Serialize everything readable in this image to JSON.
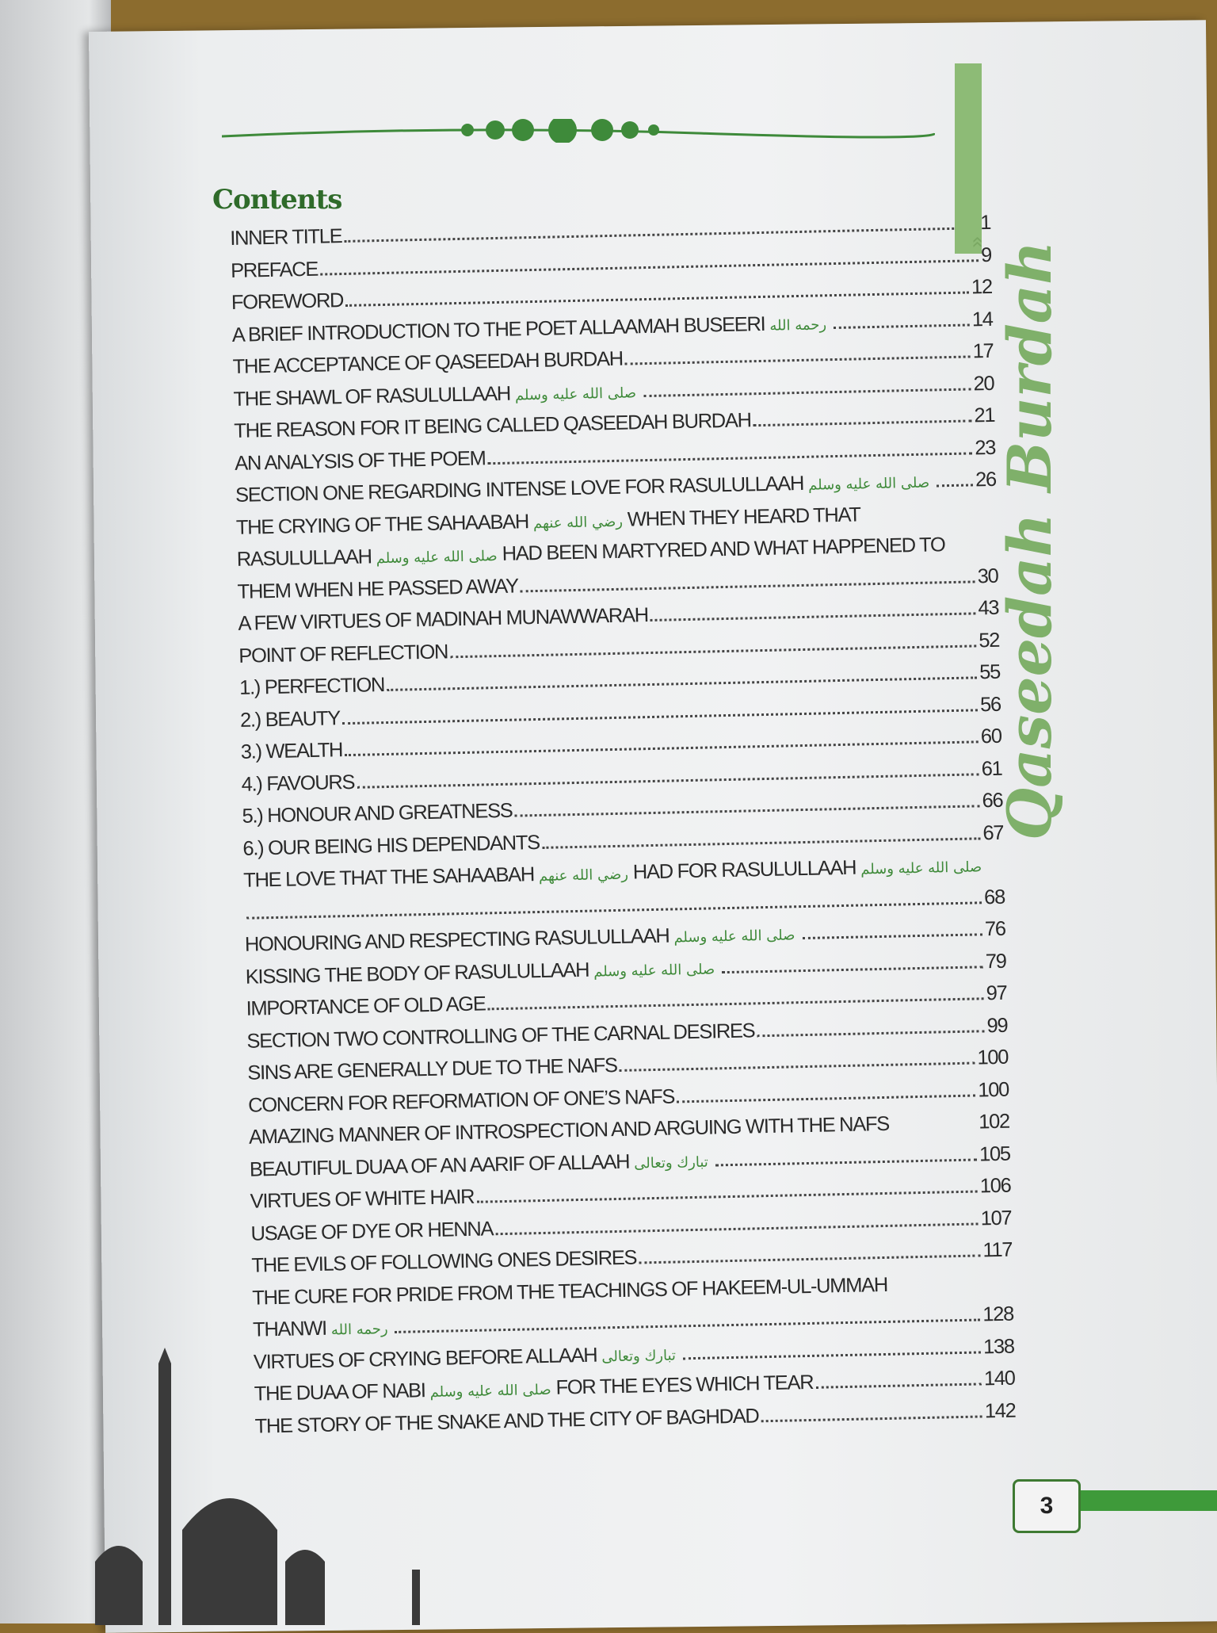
{
  "heading": "Contents",
  "side_title": "Qaseedah Burdah",
  "page_number": "3",
  "colors": {
    "accent_green": "#3e9a3a",
    "title_green": "#2f6b2a",
    "side_title_green": "#7fb06a",
    "background": "#8c6c2e"
  },
  "rows": [
    {
      "parts": [
        {
          "t": "INNER TITLE"
        }
      ],
      "page": "1"
    },
    {
      "parts": [
        {
          "t": "PREFACE"
        }
      ],
      "page": "9"
    },
    {
      "parts": [
        {
          "t": "FOREWORD "
        }
      ],
      "page": "12"
    },
    {
      "parts": [
        {
          "t": "A BRIEF INTRODUCTION TO THE POET ALLAAMAH BUSEERI",
          "hon": "رحمه الله"
        }
      ],
      "page": "14"
    },
    {
      "parts": [
        {
          "t": "THE ACCEPTANCE OF  QASEEDAH BURDAH"
        }
      ],
      "page": "17"
    },
    {
      "parts": [
        {
          "t": "THE SHAWL OF  RASULULLAAH",
          "hon": "صلى الله عليه وسلم"
        }
      ],
      "page": "20"
    },
    {
      "parts": [
        {
          "t": "THE REASON FOR IT BEING CALLED QASEEDAH BURDAH "
        }
      ],
      "page": "21"
    },
    {
      "parts": [
        {
          "t": "AN ANALYSIS OF THE POEM"
        }
      ],
      "page": "23"
    },
    {
      "parts": [
        {
          "t": "SECTION ONE REGARDING INTENSE LOVE FOR RASULULLAAH",
          "hon": "صلى الله عليه وسلم"
        }
      ],
      "page": "26"
    },
    {
      "parts": [
        {
          "t": "THE CRYING OF THE SAHAABAH",
          "hon": "رضي الله عنهم"
        },
        {
          "t": "WHEN THEY HEARD THAT"
        }
      ],
      "nodots": true
    },
    {
      "parts": [
        {
          "t": "RASULULLAAH",
          "hon": "صلى الله عليه وسلم"
        },
        {
          "t": "HAD BEEN MARTYRED AND WHAT HAPPENED TO"
        }
      ],
      "nodots": true
    },
    {
      "parts": [
        {
          "t": "THEM WHEN HE PASSED AWAY"
        }
      ],
      "page": "30"
    },
    {
      "parts": [
        {
          "t": "A FEW VIRTUES OF MADINAH MUNAWWARAH"
        }
      ],
      "page": "43"
    },
    {
      "parts": [
        {
          "t": "POINT OF REFLECTION"
        }
      ],
      "page": "52"
    },
    {
      "parts": [
        {
          "t": "1.) PERFECTION"
        }
      ],
      "page": "55"
    },
    {
      "parts": [
        {
          "t": "2.) BEAUTY "
        }
      ],
      "page": "56"
    },
    {
      "parts": [
        {
          "t": "3.) WEALTH "
        }
      ],
      "page": "60"
    },
    {
      "parts": [
        {
          "t": "4.) FAVOURS "
        }
      ],
      "page": "61"
    },
    {
      "parts": [
        {
          "t": "5.) HONOUR AND GREATNESS"
        }
      ],
      "page": "66"
    },
    {
      "parts": [
        {
          "t": "6.) OUR BEING HIS DEPENDANTS "
        }
      ],
      "page": "67"
    },
    {
      "parts": [
        {
          "t": "THE LOVE THAT THE SAHAABAH",
          "hon": "رضي الله عنهم"
        },
        {
          "t": "HAD FOR RASULULLAAH",
          "hon": "صلى الله عليه وسلم"
        }
      ],
      "nodots": true
    },
    {
      "parts": [
        {
          "t": ""
        }
      ],
      "page": "68"
    },
    {
      "parts": [
        {
          "t": "HONOURING AND RESPECTING RASULULLAAH",
          "hon": "صلى الله عليه وسلم"
        }
      ],
      "page": "76"
    },
    {
      "parts": [
        {
          "t": "KISSING THE BODY OF  RASULULLAAH",
          "hon": "صلى الله عليه وسلم"
        }
      ],
      "page": "79"
    },
    {
      "parts": [
        {
          "t": "IMPORTANCE OF OLD AGE"
        }
      ],
      "page": "97"
    },
    {
      "parts": [
        {
          "t": "SECTION TWO CONTROLLING OF THE CARNAL DESIRES "
        }
      ],
      "page": "99"
    },
    {
      "parts": [
        {
          "t": "SINS ARE GENERALLY DUE TO THE NAFS "
        }
      ],
      "page": "100"
    },
    {
      "parts": [
        {
          "t": "CONCERN FOR REFORMATION  OF ONE’S NAFS"
        }
      ],
      "page": "100"
    },
    {
      "parts": [
        {
          "t": "AMAZING MANNER OF INTROSPECTION AND ARGUING WITH THE NAFS"
        }
      ],
      "page": "102",
      "nodots": true
    },
    {
      "parts": [
        {
          "t": "BEAUTIFUL DUAA OF AN AARIF OF  ALLAAH",
          "hon": "تبارك وتعالى"
        }
      ],
      "page": "105"
    },
    {
      "parts": [
        {
          "t": "VIRTUES OF WHITE HAIR "
        }
      ],
      "page": "106"
    },
    {
      "parts": [
        {
          "t": "USAGE OF DYE OR HENNA "
        }
      ],
      "page": "107"
    },
    {
      "parts": [
        {
          "t": "THE EVILS OF FOLLOWING ONES DESIRES"
        }
      ],
      "page": "117"
    },
    {
      "parts": [
        {
          "t": "THE CURE FOR PRIDE FROM THE TEACHINGS OF HAKEEM-UL-UMMAH"
        }
      ],
      "nodots": true
    },
    {
      "parts": [
        {
          "t": "THANWI",
          "hon": "رحمه الله"
        }
      ],
      "page": "128"
    },
    {
      "parts": [
        {
          "t": "VIRTUES OF CRYING BEFORE  ALLAAH",
          "hon": "تبارك وتعالى"
        }
      ],
      "page": "138"
    },
    {
      "parts": [
        {
          "t": "THE DUAA OF NABI",
          "hon": "صلى الله عليه وسلم"
        },
        {
          "t": "FOR THE EYES WHICH TEAR"
        }
      ],
      "page": "140"
    },
    {
      "parts": [
        {
          "t": "THE STORY OF THE SNAKE AND THE CITY OF BAGHDAD "
        }
      ],
      "page": "142"
    }
  ]
}
